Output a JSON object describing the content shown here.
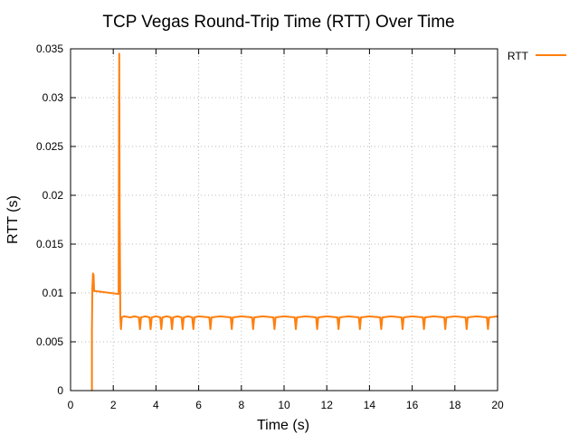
{
  "chart_data": {
    "type": "line",
    "title": "TCP Vegas Round-Trip Time (RTT) Over Time",
    "xlabel": "Time (s)",
    "ylabel": "RTT (s)",
    "xlim": [
      0,
      20
    ],
    "ylim": [
      0,
      0.035
    ],
    "xticks": [
      "0",
      "2",
      "4",
      "6",
      "8",
      "10",
      "12",
      "14",
      "16",
      "18",
      "20"
    ],
    "yticks": [
      "0",
      "0.005",
      "0.01",
      "0.015",
      "0.02",
      "0.025",
      "0.03",
      "0.035"
    ],
    "grid": true,
    "legend_position": "outside-top-right",
    "series": [
      {
        "name": "RTT",
        "color": "#ff7f0e",
        "x": [
          1.0,
          1.0,
          1.02,
          1.05,
          1.08,
          1.1,
          2.25,
          2.28,
          2.3,
          2.33,
          2.36,
          2.4,
          2.5,
          2.8,
          3.0,
          3.2,
          3.25,
          3.3,
          3.5,
          3.7,
          3.75,
          3.8,
          4.0,
          4.2,
          4.25,
          4.3,
          4.5,
          4.7,
          4.75,
          4.8,
          5.0,
          5.2,
          5.25,
          5.3,
          5.5,
          5.7,
          5.75,
          5.8,
          6.0,
          6.5,
          6.55,
          6.6,
          7.0,
          7.5,
          7.55,
          7.6,
          8.0,
          8.5,
          8.55,
          8.6,
          9.0,
          9.5,
          9.55,
          9.6,
          10.0,
          10.5,
          10.55,
          10.6,
          11.0,
          11.5,
          11.55,
          11.6,
          12.0,
          12.5,
          12.55,
          12.6,
          13.0,
          13.5,
          13.55,
          13.6,
          14.0,
          14.5,
          14.55,
          14.6,
          15.0,
          15.5,
          15.55,
          15.6,
          16.0,
          16.5,
          16.55,
          16.6,
          17.0,
          17.5,
          17.55,
          17.6,
          18.0,
          18.5,
          18.55,
          18.6,
          19.0,
          19.5,
          19.55,
          19.6,
          20.0
        ],
        "y": [
          0.0,
          0.006,
          0.0105,
          0.012,
          0.0118,
          0.0102,
          0.0099,
          0.0345,
          0.018,
          0.0075,
          0.0063,
          0.0075,
          0.0076,
          0.0075,
          0.0076,
          0.0075,
          0.0063,
          0.0075,
          0.0076,
          0.0075,
          0.0063,
          0.0075,
          0.0076,
          0.0075,
          0.0063,
          0.0075,
          0.0076,
          0.0075,
          0.0063,
          0.0075,
          0.0076,
          0.0075,
          0.0063,
          0.0075,
          0.0076,
          0.0075,
          0.0063,
          0.0075,
          0.0076,
          0.0075,
          0.0063,
          0.0075,
          0.0076,
          0.0075,
          0.0063,
          0.0075,
          0.0076,
          0.0075,
          0.0063,
          0.0075,
          0.0076,
          0.0075,
          0.0063,
          0.0075,
          0.0076,
          0.0075,
          0.0063,
          0.0075,
          0.0076,
          0.0075,
          0.0063,
          0.0075,
          0.0076,
          0.0075,
          0.0063,
          0.0075,
          0.0076,
          0.0075,
          0.0063,
          0.0075,
          0.0076,
          0.0075,
          0.0063,
          0.0075,
          0.0076,
          0.0075,
          0.0063,
          0.0075,
          0.0076,
          0.0075,
          0.0063,
          0.0075,
          0.0076,
          0.0075,
          0.0063,
          0.0075,
          0.0076,
          0.0075,
          0.0063,
          0.0075,
          0.0076,
          0.0075,
          0.0063,
          0.0075,
          0.0076
        ]
      }
    ]
  }
}
